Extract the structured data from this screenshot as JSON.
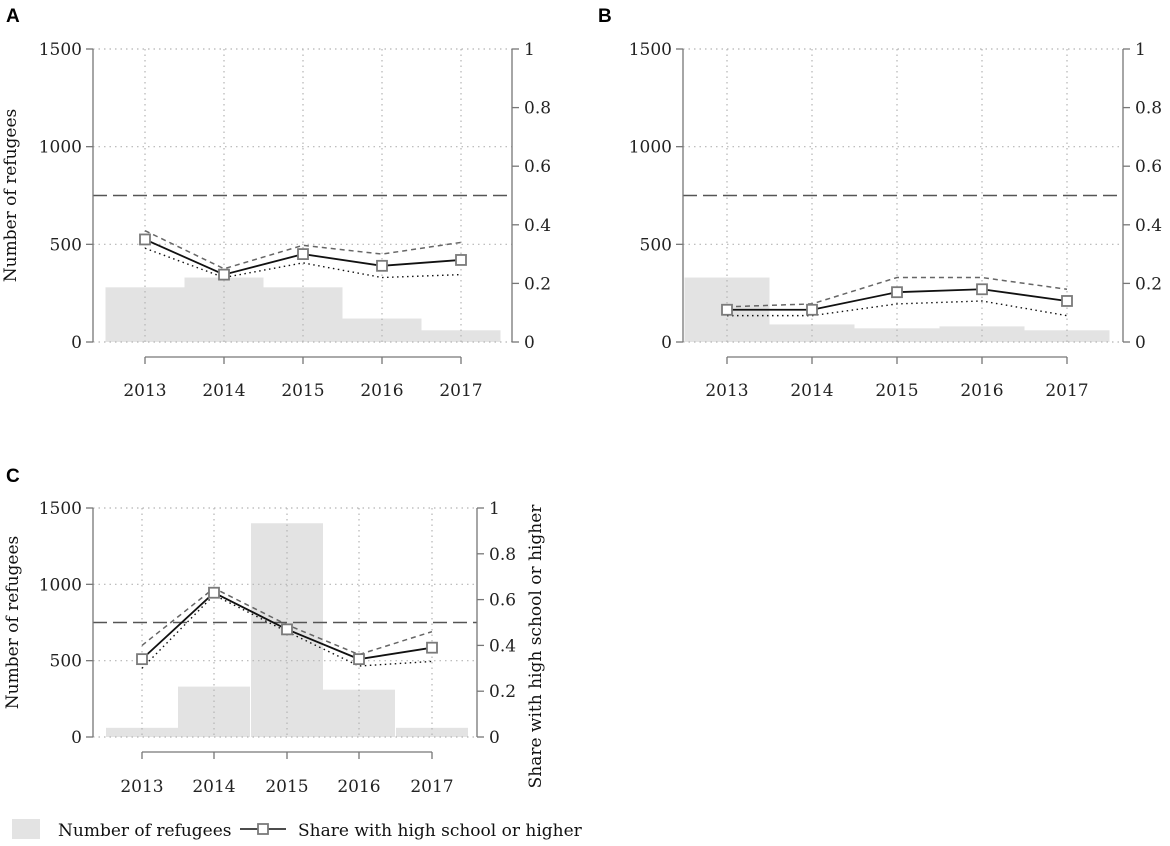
{
  "legend": {
    "bars_label": "Number of refugees",
    "line_label": "Share with high school or higher"
  },
  "chart_data": [
    {
      "panel": "A",
      "type": "bar+line",
      "categories": [
        "2013",
        "2014",
        "2015",
        "2016",
        "2017"
      ],
      "bars": {
        "name": "Number of refugees",
        "values": [
          280,
          330,
          280,
          120,
          60
        ]
      },
      "line": {
        "name": "Share with high school or higher",
        "values": [
          0.35,
          0.23,
          0.3,
          0.26,
          0.28
        ]
      },
      "upper_bound": [
        0.38,
        0.25,
        0.33,
        0.3,
        0.34
      ],
      "lower_bound": [
        0.32,
        0.22,
        0.27,
        0.22,
        0.23
      ],
      "reference_line": 0.5,
      "ylabel_left": "Number of refugees",
      "ylabel_right": "",
      "ylim_left": [
        0,
        1500
      ],
      "ylim_right": [
        0,
        1
      ],
      "yticks_left": [
        "0",
        "500",
        "1000",
        "1500"
      ],
      "yticks_right": [
        "0",
        "0.2",
        "0.4",
        "0.6",
        "0.8",
        "1"
      ]
    },
    {
      "panel": "B",
      "type": "bar+line",
      "categories": [
        "2013",
        "2014",
        "2015",
        "2016",
        "2017"
      ],
      "bars": {
        "name": "Number of refugees",
        "values": [
          330,
          90,
          70,
          80,
          60
        ]
      },
      "line": {
        "name": "Share with high school or higher",
        "values": [
          0.11,
          0.11,
          0.17,
          0.18,
          0.14
        ]
      },
      "upper_bound": [
        0.12,
        0.13,
        0.22,
        0.22,
        0.18
      ],
      "lower_bound": [
        0.09,
        0.09,
        0.13,
        0.14,
        0.09
      ],
      "reference_line": 0.5,
      "ylabel_left": "",
      "ylabel_right": "",
      "ylim_left": [
        0,
        1500
      ],
      "ylim_right": [
        0,
        1
      ],
      "yticks_left": [
        "0",
        "500",
        "1000",
        "1500"
      ],
      "yticks_right": [
        "0",
        "0.2",
        "0.4",
        "0.6",
        "0.8",
        "1"
      ]
    },
    {
      "panel": "C",
      "type": "bar+line",
      "categories": [
        "2013",
        "2014",
        "2015",
        "2016",
        "2017"
      ],
      "bars": {
        "name": "Number of refugees",
        "values": [
          60,
          330,
          1400,
          310,
          60
        ]
      },
      "line": {
        "name": "Share with high school or higher",
        "values": [
          0.34,
          0.63,
          0.47,
          0.34,
          0.39
        ]
      },
      "upper_bound": [
        0.4,
        0.65,
        0.49,
        0.36,
        0.46
      ],
      "lower_bound": [
        0.3,
        0.62,
        0.46,
        0.31,
        0.33
      ],
      "reference_line": 0.5,
      "ylabel_left": "Number of refugees",
      "ylabel_right": "Share with high school or higher",
      "ylim_left": [
        0,
        1500
      ],
      "ylim_right": [
        0,
        1
      ],
      "yticks_left": [
        "0",
        "500",
        "1000",
        "1500"
      ],
      "yticks_right": [
        "0",
        "0.2",
        "0.4",
        "0.6",
        "0.8",
        "1"
      ]
    }
  ]
}
